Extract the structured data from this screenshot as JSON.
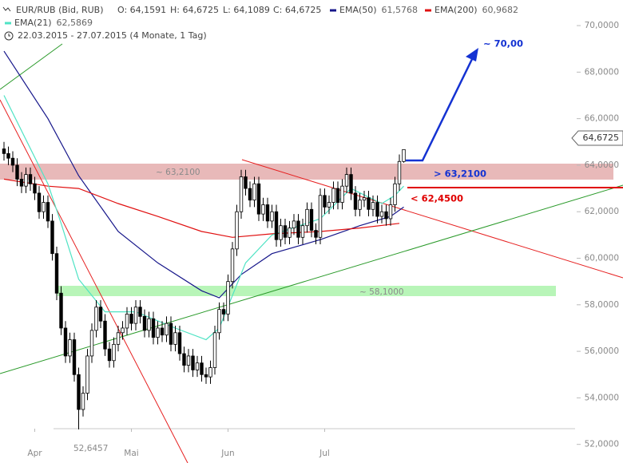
{
  "chart_data": {
    "type": "candlestick",
    "header": {
      "instrument": "EUR/RUB (Bid, RUB)",
      "ohlc": [
        "O: 64,1591",
        "H: 64,6725",
        "L: 64,1089",
        "C: 64,6725"
      ],
      "range": "22.03.2015 - 27.07.2015 (4 Monate, 1 Tag)"
    },
    "categories": [
      null,
      null,
      null,
      null,
      null,
      null,
      null,
      "Apr",
      null,
      null,
      null,
      null,
      null,
      null,
      null,
      null,
      null,
      null,
      null,
      null,
      null,
      null,
      null,
      null,
      null,
      null,
      null,
      null,
      null,
      "Mai",
      null,
      null,
      null,
      null,
      null,
      null,
      null,
      null,
      null,
      null,
      null,
      null,
      null,
      null,
      null,
      null,
      null,
      null,
      null,
      null,
      null,
      "Jun",
      null,
      null,
      null,
      null,
      null,
      null,
      null,
      null,
      null,
      null,
      null,
      null,
      null,
      null,
      null,
      null,
      null,
      null,
      null,
      null,
      null,
      "Jul",
      null,
      null,
      null,
      null,
      null,
      null,
      null,
      null,
      null,
      null,
      null,
      null,
      null,
      null,
      null,
      null,
      null,
      null
    ],
    "open": [
      64.7,
      64.5,
      64.3,
      64.0,
      63.4,
      63.1,
      63.6,
      63.2,
      62.8,
      62.0,
      62.4,
      61.6,
      60.2,
      58.5,
      57.0,
      55.8,
      56.5,
      55.0,
      53.5,
      54.2,
      55.8,
      56.9,
      57.9,
      57.3,
      56.1,
      55.6,
      56.3,
      56.8,
      57.0,
      57.6,
      57.2,
      57.9,
      57.5,
      56.9,
      57.4,
      56.6,
      57.0,
      56.7,
      57.2,
      56.3,
      56.8,
      55.9,
      55.4,
      55.8,
      55.2,
      55.5,
      55.0,
      54.9,
      55.3,
      56.8,
      57.8,
      57.6,
      59.0,
      60.4,
      62.0,
      63.5,
      63.0,
      62.5,
      63.2,
      61.9,
      62.3,
      61.6,
      62.0,
      60.8,
      61.4,
      60.9,
      61.3,
      61.6,
      60.9,
      61.4,
      62.1,
      61.2,
      60.9,
      62.7,
      62.2,
      62.4,
      63.0,
      62.4,
      63.1,
      63.6,
      62.8,
      62.1,
      62.5,
      62.6,
      62.1,
      62.4,
      61.8,
      62.0,
      61.7,
      62.3,
      63.2,
      64.1591
    ],
    "high": [
      65.0,
      64.8,
      64.6,
      64.3,
      63.7,
      63.9,
      63.9,
      63.5,
      63.1,
      62.7,
      62.7,
      61.9,
      60.5,
      58.8,
      57.3,
      56.8,
      56.8,
      55.3,
      54.5,
      56.1,
      57.2,
      58.2,
      58.2,
      57.6,
      56.4,
      56.6,
      57.1,
      57.3,
      57.9,
      57.9,
      58.2,
      58.2,
      57.8,
      57.7,
      57.7,
      57.3,
      57.3,
      57.5,
      57.5,
      57.1,
      57.1,
      56.2,
      56.1,
      56.1,
      55.8,
      55.8,
      55.3,
      55.6,
      57.1,
      58.1,
      58.1,
      59.3,
      60.7,
      62.3,
      63.8,
      63.8,
      63.3,
      63.5,
      63.5,
      62.6,
      62.6,
      62.3,
      62.3,
      61.7,
      61.7,
      61.6,
      61.9,
      61.9,
      61.7,
      62.4,
      62.4,
      61.5,
      63.0,
      63.0,
      62.7,
      63.3,
      63.3,
      63.4,
      63.9,
      63.9,
      63.1,
      62.8,
      62.9,
      62.9,
      62.7,
      62.7,
      62.3,
      62.3,
      62.6,
      63.5,
      64.46,
      64.6725
    ],
    "low": [
      64.2,
      64.0,
      63.7,
      63.1,
      62.8,
      62.8,
      62.9,
      62.5,
      61.7,
      61.7,
      61.3,
      59.9,
      58.2,
      56.7,
      55.5,
      55.5,
      54.7,
      52.6457,
      53.2,
      53.9,
      55.5,
      56.6,
      57.0,
      55.8,
      55.3,
      55.3,
      56.0,
      56.5,
      56.7,
      56.9,
      56.9,
      57.2,
      56.6,
      56.6,
      56.3,
      56.3,
      56.4,
      56.4,
      56.0,
      56.0,
      55.6,
      55.1,
      55.1,
      54.9,
      54.9,
      54.7,
      54.6,
      54.6,
      55.0,
      56.5,
      57.3,
      57.3,
      58.7,
      60.1,
      61.7,
      62.7,
      62.2,
      62.2,
      61.6,
      61.6,
      61.3,
      61.3,
      60.5,
      60.5,
      60.6,
      60.6,
      61.0,
      60.6,
      60.6,
      61.1,
      60.9,
      60.6,
      60.6,
      61.9,
      61.9,
      62.1,
      62.1,
      62.1,
      62.8,
      62.5,
      61.8,
      61.8,
      62.2,
      61.8,
      61.8,
      61.5,
      61.5,
      61.4,
      61.4,
      62.0,
      62.9,
      64.1089
    ],
    "close": [
      64.5,
      64.3,
      64.0,
      63.4,
      63.1,
      63.6,
      63.2,
      62.8,
      62.0,
      62.4,
      61.6,
      60.2,
      58.5,
      57.0,
      55.8,
      56.5,
      55.0,
      53.5,
      54.2,
      55.8,
      56.9,
      57.9,
      57.3,
      56.1,
      55.6,
      56.3,
      56.8,
      57.0,
      57.6,
      57.2,
      57.9,
      57.5,
      56.9,
      57.4,
      56.6,
      57.0,
      56.7,
      57.2,
      56.3,
      56.8,
      55.9,
      55.4,
      55.8,
      55.2,
      55.5,
      55.0,
      54.9,
      55.3,
      56.8,
      57.8,
      57.6,
      59.0,
      60.4,
      62.0,
      63.5,
      63.0,
      62.5,
      63.2,
      61.9,
      62.3,
      61.6,
      62.0,
      60.8,
      61.4,
      60.9,
      61.3,
      61.6,
      60.9,
      61.4,
      62.1,
      61.2,
      60.9,
      62.7,
      62.2,
      62.4,
      63.0,
      62.4,
      63.1,
      63.6,
      62.8,
      62.1,
      62.5,
      62.6,
      62.1,
      62.4,
      61.8,
      62.0,
      61.7,
      62.3,
      63.2,
      64.16,
      64.6725
    ],
    "series": [
      {
        "name": "EMA(50)",
        "legend_value": "61,5768",
        "color": "#16168a",
        "x": [
          0,
          10,
          17,
          26,
          35,
          45,
          49,
          54,
          61,
          72,
          81,
          88,
          91
        ],
        "values": [
          68.9,
          66.0,
          63.55,
          61.15,
          59.8,
          58.6,
          58.3,
          59.3,
          60.2,
          60.8,
          61.4,
          61.8,
          62.2
        ]
      },
      {
        "name": "EMA(200)",
        "legend_value": "60,9682",
        "color": "#e01010",
        "x": [
          0,
          10,
          17,
          26,
          35,
          45,
          52,
          61,
          72,
          81,
          90
        ],
        "values": [
          63.4,
          63.1,
          63.0,
          62.35,
          61.8,
          61.15,
          60.9,
          61.05,
          61.15,
          61.3,
          61.5
        ]
      },
      {
        "name": "EMA(21)",
        "legend_value": "62,5869",
        "color": "#4fe3c4",
        "x": [
          0,
          10,
          13,
          17,
          23,
          30,
          39,
          46,
          49,
          52,
          55,
          61,
          72,
          79,
          86,
          89,
          91
        ],
        "values": [
          67.0,
          63.2,
          61.5,
          59.1,
          57.7,
          57.7,
          57.0,
          56.5,
          57.0,
          58.4,
          59.8,
          61.0,
          61.7,
          63.0,
          62.35,
          62.7,
          63.1
        ]
      }
    ],
    "ylim": [
      51.2,
      71.1
    ],
    "yticks": [
      {
        "value": 52,
        "label": "52,0000"
      },
      {
        "value": 54,
        "label": "54,0000"
      },
      {
        "value": 56,
        "label": "56,0000"
      },
      {
        "value": 58,
        "label": "58,0000"
      },
      {
        "value": 60,
        "label": "60,0000"
      },
      {
        "value": 62,
        "label": "62,0000"
      },
      {
        "value": 64,
        "label": "64,0000"
      },
      {
        "value": 66,
        "label": "66,0000"
      },
      {
        "value": 68,
        "label": "68,0000"
      },
      {
        "value": 70,
        "label": "70,0000"
      }
    ],
    "last_price_label": "64,6725",
    "annotations": {
      "resistance_zone": "~ 63,2100",
      "support_zone": "~ 58,1000",
      "breakout": "> 63,2100",
      "stop": "< 62,4500",
      "target": "~ 70,00",
      "low": "52,6457"
    }
  }
}
